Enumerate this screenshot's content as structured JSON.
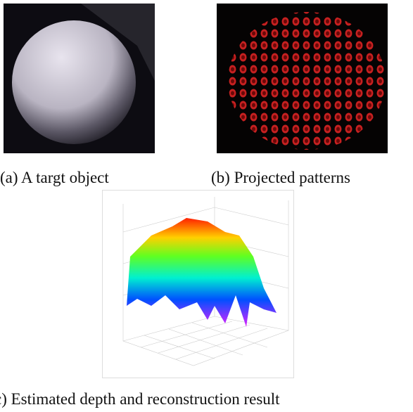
{
  "figure": {
    "panels": [
      {
        "caption": "(a) A targt object"
      },
      {
        "caption": "(b) Projected patterns"
      },
      {
        "caption": "c) Estimated depth and reconstruction result"
      }
    ]
  }
}
